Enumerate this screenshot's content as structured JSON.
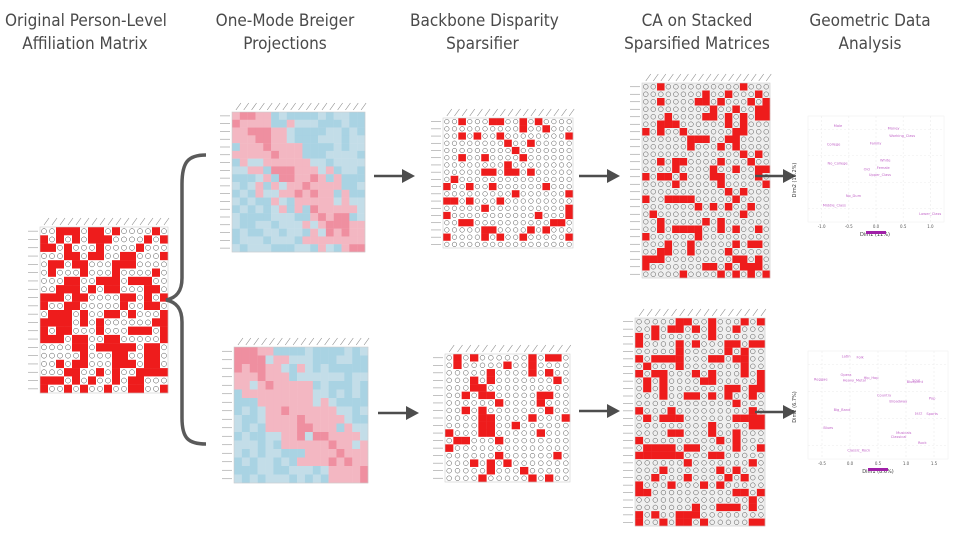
{
  "stages": [
    {
      "id": "s1",
      "line1": "Original Person-Level",
      "line2": "Affiliation Matrix"
    },
    {
      "id": "s2",
      "line1": "One-Mode Breiger",
      "line2": "Projections"
    },
    {
      "id": "s3",
      "line1": "Backbone Disparity",
      "line2": "Sparsifier"
    },
    {
      "id": "s4",
      "line1": "CA on Stacked",
      "line2": "Sparsified Matrices"
    },
    {
      "id": "s5",
      "line1": "Geometric Data",
      "line2": "Analysis"
    }
  ],
  "colors": {
    "title": "#4a4a4a",
    "red": "#ee1c1c",
    "pink": "#f3a8b6",
    "blue": "#a9d3e3",
    "arrow": "#4d4d4d",
    "purple": "#c266c8",
    "grid": "#e9e9e9"
  },
  "plot_top": {
    "xlabel": "Dim1 (11%)",
    "ylabel": "Dim2 (10.2%)",
    "xticks": [
      "-1.0",
      "-0.5",
      "0.0",
      "0.5",
      "1.0"
    ],
    "labels": [
      "Upper_Class",
      "College",
      "Old",
      "Middle_Class",
      "White",
      "No_Dum",
      "Money",
      "Family",
      "Working_Class",
      "Female",
      "Male",
      "Lower_Class",
      "No_College"
    ]
  },
  "plot_bottom": {
    "xlabel": "Dim1 (8.6%)",
    "ylabel": "Dim2 (6.7%)",
    "xticks": [
      "-0.5",
      "0.0",
      "0.5",
      "1.0",
      "1.5"
    ],
    "labels": [
      "Sports",
      "Classical",
      "Blueprint",
      "Hip_Hop",
      "Opera",
      "Classic_Rock",
      "Country",
      "Rock",
      "Pop",
      "Broadway",
      "Reggae",
      "Latin",
      "Blues",
      "Jazz",
      "Folk",
      "Big_Band",
      "Soul",
      "Musicals",
      "Heavy_Metal"
    ]
  }
}
